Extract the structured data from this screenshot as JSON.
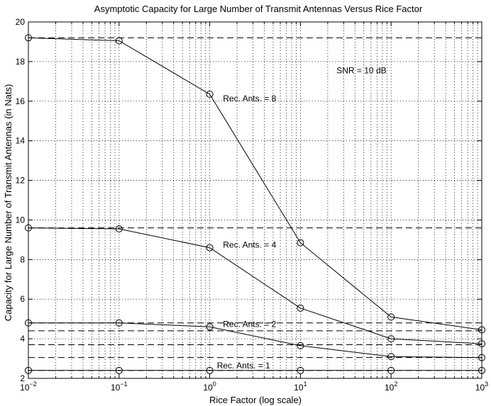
{
  "chart_data": {
    "type": "line",
    "title": "Asymptotic Capacity for Large Number of Transmit Antennas Versus Rice Factor",
    "xlabel": "Rice Factor (log scale)",
    "ylabel": "Capacity for Large Number of Transmit Antennas (in Nats)",
    "xscale": "log",
    "xlim": [
      0.01,
      1000
    ],
    "ylim": [
      2,
      20
    ],
    "grid": true,
    "xticks": [
      {
        "value": 0.01,
        "base": "10",
        "exp": "−2"
      },
      {
        "value": 0.1,
        "base": "10",
        "exp": "−1"
      },
      {
        "value": 1,
        "base": "10",
        "exp": "0"
      },
      {
        "value": 10,
        "base": "10",
        "exp": "1"
      },
      {
        "value": 100,
        "base": "10",
        "exp": "2"
      },
      {
        "value": 1000,
        "base": "10",
        "exp": "3"
      }
    ],
    "yticks": [
      2,
      4,
      6,
      8,
      10,
      12,
      14,
      16,
      18,
      20
    ],
    "annotation": {
      "text": "SNR = 10 dB",
      "x": 25,
      "y": 17.4
    },
    "x": [
      0.01,
      0.1,
      1,
      10,
      100,
      1000
    ],
    "series": [
      {
        "label": "Rec. Ants. = 8",
        "label_at": {
          "x": 1.4,
          "y": 16.0
        },
        "values": [
          19.2,
          19.05,
          16.35,
          8.85,
          5.1,
          4.45
        ],
        "asymptote": 19.2
      },
      {
        "label": "Rec. Ants. = 4",
        "label_at": {
          "x": 1.4,
          "y": 8.6
        },
        "values": [
          9.6,
          9.55,
          8.6,
          5.55,
          4.0,
          3.75
        ],
        "asymptote": 9.6
      },
      {
        "label": "Rec. Ants. = 2",
        "label_at": {
          "x": 1.4,
          "y": 4.6
        },
        "values": [
          4.8,
          4.8,
          4.6,
          3.65,
          3.1,
          3.05
        ],
        "asymptote": 4.8
      },
      {
        "label": "Rec. Ants. = 1",
        "label_at": {
          "x": 1.2,
          "y": 2.5
        },
        "values": [
          2.4,
          2.4,
          2.4,
          2.4,
          2.4,
          2.4
        ],
        "asymptote": 2.4
      }
    ],
    "extra_dashed_levels": [
      4.4,
      3.7,
      3.05
    ]
  }
}
